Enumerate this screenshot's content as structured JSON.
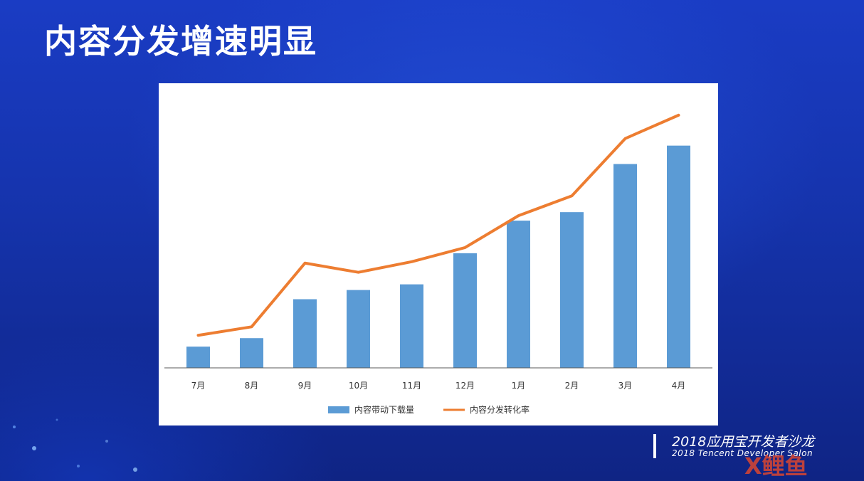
{
  "slide": {
    "title": "内容分发增速明显"
  },
  "footer": {
    "event_cn": "2018应用宝开发者沙龙",
    "event_en": "2018 Tencent Developer Salon"
  },
  "watermark": {
    "text": "X鲤鱼"
  },
  "colors": {
    "bar": "#5b9bd5",
    "line": "#ed7d31",
    "axis": "#595959"
  },
  "chart_data": {
    "type": "bar",
    "categories": [
      "7月",
      "8月",
      "9月",
      "10月",
      "11月",
      "12月",
      "1月",
      "2月",
      "3月",
      "4月"
    ],
    "series": [
      {
        "name": "内容带动下载量",
        "type": "bar",
        "values": [
          30,
          42,
          97,
          110,
          118,
          162,
          208,
          220,
          288,
          314
        ]
      },
      {
        "name": "内容分发转化率",
        "type": "line",
        "values": [
          46,
          58,
          148,
          135,
          150,
          170,
          215,
          243,
          324,
          357
        ]
      }
    ],
    "ylim": [
      0,
      380
    ],
    "grid": false,
    "legend": "bottom",
    "title": "",
    "xlabel": "",
    "ylabel": ""
  }
}
